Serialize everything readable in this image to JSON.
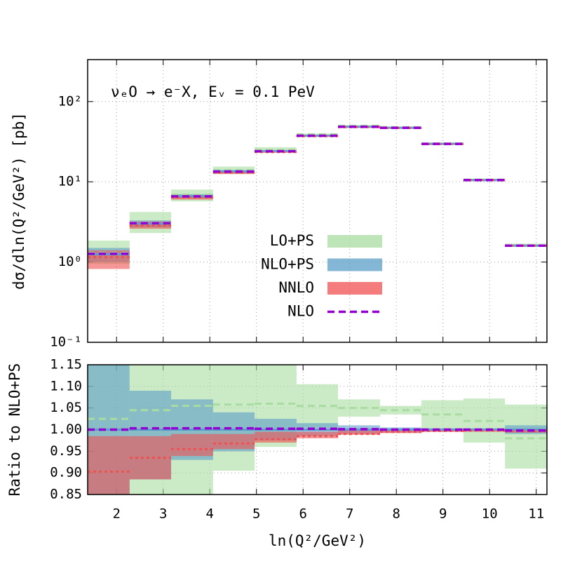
{
  "chart_data": [
    {
      "type": "histogram",
      "annotation": "νₑO → e⁻X, Eᵥ = 0.1 PeV",
      "y_label": "dσ/dln(Q²/GeV²) [pb]",
      "bins": [
        1.38,
        2.28,
        3.17,
        4.07,
        4.96,
        5.86,
        6.75,
        7.65,
        8.54,
        9.44,
        10.33,
        11.23
      ],
      "xlim": [
        1.38,
        11.23
      ],
      "xticks": [
        2,
        3,
        4,
        5,
        6,
        7,
        8,
        9,
        10,
        11
      ],
      "ylim": [
        0.1,
        333
      ],
      "log_y": true,
      "grid": true,
      "legend": "center right",
      "yticks": [
        {
          "value": 0.1,
          "label": "10⁻¹"
        },
        {
          "value": 1,
          "label": "10⁰"
        },
        {
          "value": 10,
          "label": "10¹"
        },
        {
          "value": 100,
          "label": "10²"
        }
      ],
      "series": [
        {
          "name": "LO+PS",
          "color": "#a8dca0",
          "dash": "dashed",
          "values": [
            1.3,
            3.1,
            6.9,
            14,
            25,
            39,
            50,
            48,
            30,
            10.6,
            1.6
          ],
          "low": [
            0.95,
            2.3,
            5.7,
            12.5,
            23,
            36,
            47,
            46,
            29,
            10.3,
            1.55
          ],
          "high": [
            1.85,
            4.2,
            8.0,
            15.5,
            27,
            40,
            51,
            49,
            31,
            11,
            1.7
          ]
        },
        {
          "name": "NLO+PS",
          "color": "#5b9ec8",
          "dash": "solid",
          "values": [
            1.25,
            3.0,
            6.6,
            13.5,
            24,
            37.5,
            48.5,
            47,
            29.7,
            10.5,
            1.6
          ],
          "low": [
            1.0,
            2.7,
            6.2,
            12.8,
            23.5,
            37,
            47.5,
            46.5,
            29.3,
            10.4,
            1.58
          ],
          "high": [
            1.5,
            3.3,
            7.0,
            14,
            25,
            38.5,
            49.5,
            48,
            30,
            10.7,
            1.65
          ]
        },
        {
          "name": "NNLO",
          "color": "#f05050",
          "dash": "dotted",
          "values": [
            1.15,
            2.85,
            6.4,
            13.1,
            23.5,
            37,
            48,
            46.8,
            29.5,
            10.5,
            1.6
          ],
          "low": [
            0.82,
            2.6,
            6.0,
            12.5,
            23,
            36.5,
            47,
            46.5,
            29.2,
            10.4,
            1.57
          ],
          "high": [
            1.4,
            3.2,
            6.8,
            13.5,
            24.5,
            38,
            49,
            47.5,
            29.8,
            10.6,
            1.63
          ]
        },
        {
          "name": "NLO",
          "color": "#9400d3",
          "dash": "dashed",
          "values": [
            1.27,
            3.05,
            6.6,
            13.4,
            24,
            37.5,
            48.5,
            47,
            29.7,
            10.5,
            1.6
          ]
        }
      ]
    },
    {
      "type": "histogram",
      "y_label": "Ratio to NLO+PS",
      "x_label": "ln(Q²/GeV²)",
      "bins": [
        1.38,
        2.28,
        3.17,
        4.07,
        4.96,
        5.86,
        6.75,
        7.65,
        8.54,
        9.44,
        10.33,
        11.23
      ],
      "xlim": [
        1.38,
        11.23
      ],
      "xticks": [
        2,
        3,
        4,
        5,
        6,
        7,
        8,
        9,
        10,
        11
      ],
      "ylim": [
        0.85,
        1.15
      ],
      "grid": true,
      "yticks": [
        {
          "value": 0.85,
          "label": "0.85"
        },
        {
          "value": 0.9,
          "label": "0.90"
        },
        {
          "value": 0.95,
          "label": "0.95"
        },
        {
          "value": 1,
          "label": "1.00"
        },
        {
          "value": 1.05,
          "label": "1.05"
        },
        {
          "value": 1.1,
          "label": "1.10"
        },
        {
          "value": 1.15,
          "label": "1.15"
        }
      ],
      "series": [
        {
          "color": "#a8dca0",
          "dash": "dashed",
          "values": [
            1.025,
            1.045,
            1.055,
            1.058,
            1.06,
            1.055,
            1.05,
            1.045,
            1.035,
            1.02,
            0.98
          ],
          "low": [
            0.85,
            0.85,
            0.85,
            0.905,
            0.96,
            1.005,
            1.03,
            1.035,
            1.0,
            0.97,
            0.91
          ],
          "high": [
            1.15,
            1.15,
            1.15,
            1.15,
            1.15,
            1.105,
            1.07,
            1.055,
            1.068,
            1.072,
            1.058
          ]
        },
        {
          "color": "#5b9ec8",
          "dash": "solid",
          "values": [
            1,
            1,
            1,
            1,
            1,
            1,
            1,
            1,
            1,
            1,
            1
          ],
          "low": [
            0.85,
            0.885,
            0.93,
            0.95,
            0.975,
            0.985,
            0.99,
            0.993,
            0.995,
            0.997,
            0.99
          ],
          "high": [
            1.15,
            1.09,
            1.07,
            1.04,
            1.025,
            1.015,
            1.01,
            1.005,
            1.003,
            1.003,
            1.01
          ]
        },
        {
          "color": "#f05050",
          "dash": "dotted",
          "values": [
            0.903,
            0.935,
            0.955,
            0.968,
            0.978,
            0.985,
            0.99,
            0.995,
            0.997,
            0.998,
            0.997
          ],
          "low": [
            0.85,
            0.885,
            0.939,
            0.955,
            0.97,
            0.98,
            0.988,
            0.992,
            0.995,
            0.995,
            0.993
          ],
          "high": [
            0.985,
            0.985,
            0.99,
            0.99,
            0.995,
            0.995,
            0.998,
            1.0,
            1.0,
            1.0,
            1.0
          ]
        },
        {
          "color": "#9400d3",
          "dash": "dashed",
          "values": [
            1.0,
            1.003,
            1.003,
            1.003,
            1.002,
            1.002,
            1.001,
            1.0,
            1.0,
            1.0,
            0.998
          ]
        }
      ]
    }
  ]
}
